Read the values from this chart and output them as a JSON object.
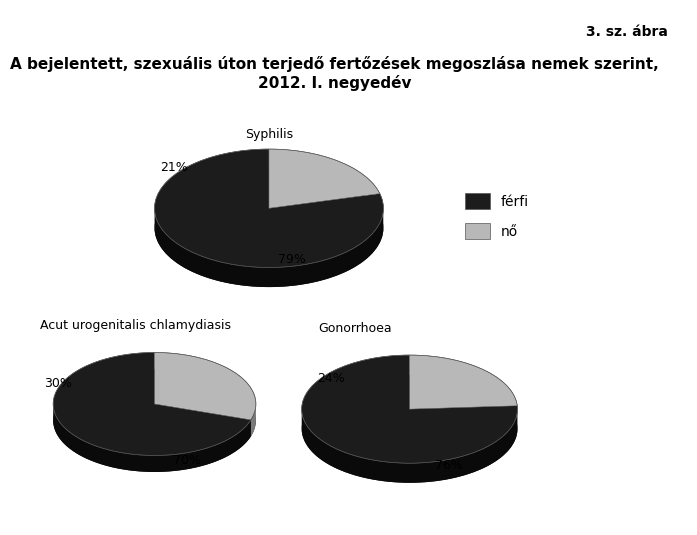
{
  "figure_label": "3. sz. ábra",
  "title": "A bejelentett, szexuális úton terjedő fertőzések megoszlása nemek szerint,\n2012. I. negyedév",
  "charts": [
    {
      "name": "Syphilis",
      "values": [
        79,
        21
      ],
      "colors": [
        "#1c1c1c",
        "#b8b8b8"
      ],
      "shadow_colors": [
        "#0a0a0a",
        "#7a7a7a"
      ],
      "labels": [
        "79%",
        "21%"
      ],
      "startangle": 90
    },
    {
      "name": "Acut urogenitalis chlamydiasis",
      "values": [
        70,
        30
      ],
      "colors": [
        "#1c1c1c",
        "#b8b8b8"
      ],
      "shadow_colors": [
        "#0a0a0a",
        "#7a7a7a"
      ],
      "labels": [
        "70%",
        "30%"
      ],
      "startangle": 90
    },
    {
      "name": "Gonorrhoea",
      "values": [
        76,
        24
      ],
      "colors": [
        "#1c1c1c",
        "#b8b8b8"
      ],
      "shadow_colors": [
        "#0a0a0a",
        "#7a7a7a"
      ],
      "labels": [
        "76%",
        "24%"
      ],
      "startangle": 90
    }
  ],
  "legend_labels": [
    "férfi",
    "nő"
  ],
  "legend_colors": [
    "#1c1c1c",
    "#b8b8b8"
  ],
  "background_color": "#ffffff",
  "title_fontsize": 11,
  "label_fontsize": 9,
  "chart_label_fontsize": 9
}
